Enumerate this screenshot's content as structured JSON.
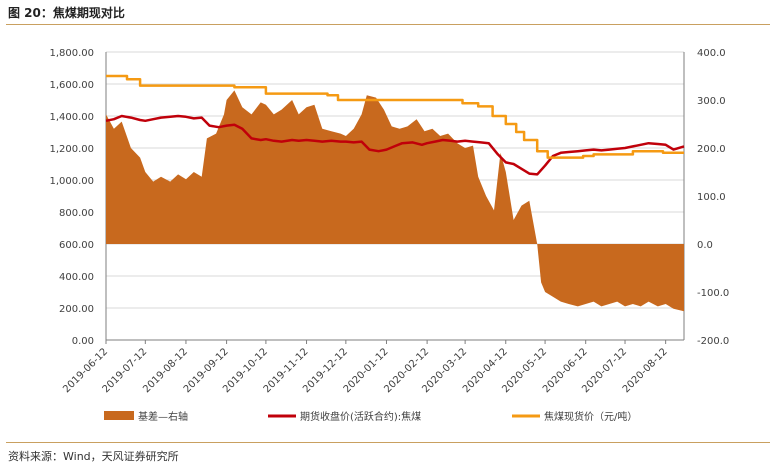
{
  "header": {
    "title": "图 20：焦煤期现对比"
  },
  "footer": {
    "source": "资料来源：Wind，天风证券研究所"
  },
  "colors": {
    "basis": "#c8691e",
    "futures": "#c0000a",
    "spot": "#f59a13",
    "axis": "#7f7f7f",
    "grid": "#d9d9d9"
  },
  "chart_data": {
    "type": "line",
    "x_tick_labels": [
      "2019-06-12",
      "2019-07-12",
      "2019-08-12",
      "2019-09-12",
      "2019-10-12",
      "2019-11-12",
      "2019-12-12",
      "2020-01-12",
      "2020-02-12",
      "2020-03-12",
      "2020-04-12",
      "2020-05-12",
      "2020-06-12",
      "2020-07-12",
      "2020-08-12"
    ],
    "x_range": [
      "2019-06-12",
      "2020-08-26"
    ],
    "left_axis": {
      "range": [
        0,
        1800
      ],
      "ticks": [
        "0.00",
        "200.00",
        "400.00",
        "600.00",
        "800.00",
        "1,000.00",
        "1,200.00",
        "1,400.00",
        "1,600.00",
        "1,800.00"
      ]
    },
    "right_axis": {
      "range": [
        -200,
        400
      ],
      "ticks": [
        "-200.0",
        "-100.0",
        "0.0",
        "100.0",
        "200.0",
        "300.0",
        "400.0"
      ]
    },
    "grid": "horizontal",
    "legend_position": "bottom",
    "series": [
      {
        "name": "基差—右轴",
        "kind": "area",
        "axis": "right",
        "points": [
          [
            "2019-06-12",
            270
          ],
          [
            "2019-06-18",
            240
          ],
          [
            "2019-06-24",
            255
          ],
          [
            "2019-07-01",
            200
          ],
          [
            "2019-07-08",
            180
          ],
          [
            "2019-07-12",
            150
          ],
          [
            "2019-07-18",
            130
          ],
          [
            "2019-07-24",
            140
          ],
          [
            "2019-07-31",
            130
          ],
          [
            "2019-08-06",
            145
          ],
          [
            "2019-08-12",
            135
          ],
          [
            "2019-08-18",
            150
          ],
          [
            "2019-08-24",
            140
          ],
          [
            "2019-08-28",
            220
          ],
          [
            "2019-09-04",
            230
          ],
          [
            "2019-09-10",
            270
          ],
          [
            "2019-09-12",
            300
          ],
          [
            "2019-09-18",
            320
          ],
          [
            "2019-09-24",
            285
          ],
          [
            "2019-10-01",
            270
          ],
          [
            "2019-10-08",
            295
          ],
          [
            "2019-10-12",
            290
          ],
          [
            "2019-10-18",
            270
          ],
          [
            "2019-10-24",
            280
          ],
          [
            "2019-11-01",
            300
          ],
          [
            "2019-11-06",
            270
          ],
          [
            "2019-11-12",
            285
          ],
          [
            "2019-11-18",
            290
          ],
          [
            "2019-11-24",
            240
          ],
          [
            "2019-12-01",
            235
          ],
          [
            "2019-12-08",
            230
          ],
          [
            "2019-12-12",
            225
          ],
          [
            "2019-12-18",
            240
          ],
          [
            "2019-12-24",
            270
          ],
          [
            "2019-12-28",
            310
          ],
          [
            "2020-01-04",
            305
          ],
          [
            "2020-01-10",
            280
          ],
          [
            "2020-01-16",
            245
          ],
          [
            "2020-01-22",
            240
          ],
          [
            "2020-01-28",
            245
          ],
          [
            "2020-02-04",
            260
          ],
          [
            "2020-02-10",
            235
          ],
          [
            "2020-02-16",
            240
          ],
          [
            "2020-02-22",
            225
          ],
          [
            "2020-02-28",
            230
          ],
          [
            "2020-03-06",
            210
          ],
          [
            "2020-03-12",
            200
          ],
          [
            "2020-03-18",
            205
          ],
          [
            "2020-03-22",
            140
          ],
          [
            "2020-03-28",
            100
          ],
          [
            "2020-04-03",
            70
          ],
          [
            "2020-04-08",
            190
          ],
          [
            "2020-04-12",
            150
          ],
          [
            "2020-04-18",
            50
          ],
          [
            "2020-04-24",
            80
          ],
          [
            "2020-04-30",
            90
          ],
          [
            "2020-05-06",
            0
          ],
          [
            "2020-05-09",
            -80
          ],
          [
            "2020-05-12",
            -100
          ],
          [
            "2020-05-18",
            -110
          ],
          [
            "2020-05-24",
            -120
          ],
          [
            "2020-05-30",
            -125
          ],
          [
            "2020-06-06",
            -130
          ],
          [
            "2020-06-12",
            -125
          ],
          [
            "2020-06-18",
            -120
          ],
          [
            "2020-06-24",
            -130
          ],
          [
            "2020-06-30",
            -125
          ],
          [
            "2020-07-06",
            -120
          ],
          [
            "2020-07-12",
            -130
          ],
          [
            "2020-07-18",
            -125
          ],
          [
            "2020-07-24",
            -130
          ],
          [
            "2020-07-30",
            -120
          ],
          [
            "2020-08-06",
            -130
          ],
          [
            "2020-08-12",
            -125
          ],
          [
            "2020-08-18",
            -135
          ],
          [
            "2020-08-26",
            -140
          ]
        ]
      },
      {
        "name": "期货收盘价(活跃合约):焦煤",
        "kind": "line",
        "axis": "left",
        "points": [
          [
            "2019-06-12",
            1370
          ],
          [
            "2019-06-18",
            1380
          ],
          [
            "2019-06-24",
            1400
          ],
          [
            "2019-07-01",
            1390
          ],
          [
            "2019-07-08",
            1375
          ],
          [
            "2019-07-12",
            1370
          ],
          [
            "2019-07-18",
            1380
          ],
          [
            "2019-07-24",
            1390
          ],
          [
            "2019-07-31",
            1395
          ],
          [
            "2019-08-06",
            1400
          ],
          [
            "2019-08-12",
            1395
          ],
          [
            "2019-08-18",
            1385
          ],
          [
            "2019-08-24",
            1390
          ],
          [
            "2019-08-30",
            1340
          ],
          [
            "2019-09-06",
            1330
          ],
          [
            "2019-09-12",
            1340
          ],
          [
            "2019-09-18",
            1345
          ],
          [
            "2019-09-24",
            1320
          ],
          [
            "2019-10-01",
            1260
          ],
          [
            "2019-10-08",
            1250
          ],
          [
            "2019-10-12",
            1255
          ],
          [
            "2019-10-18",
            1245
          ],
          [
            "2019-10-24",
            1240
          ],
          [
            "2019-11-01",
            1250
          ],
          [
            "2019-11-06",
            1245
          ],
          [
            "2019-11-12",
            1250
          ],
          [
            "2019-11-18",
            1245
          ],
          [
            "2019-11-24",
            1240
          ],
          [
            "2019-12-01",
            1245
          ],
          [
            "2019-12-08",
            1240
          ],
          [
            "2019-12-12",
            1240
          ],
          [
            "2019-12-18",
            1235
          ],
          [
            "2019-12-24",
            1240
          ],
          [
            "2019-12-30",
            1190
          ],
          [
            "2020-01-06",
            1180
          ],
          [
            "2020-01-12",
            1190
          ],
          [
            "2020-01-18",
            1210
          ],
          [
            "2020-01-24",
            1230
          ],
          [
            "2020-02-01",
            1235
          ],
          [
            "2020-02-08",
            1220
          ],
          [
            "2020-02-12",
            1230
          ],
          [
            "2020-02-18",
            1240
          ],
          [
            "2020-02-24",
            1250
          ],
          [
            "2020-03-01",
            1245
          ],
          [
            "2020-03-06",
            1240
          ],
          [
            "2020-03-12",
            1245
          ],
          [
            "2020-03-18",
            1240
          ],
          [
            "2020-03-24",
            1235
          ],
          [
            "2020-03-30",
            1230
          ],
          [
            "2020-04-06",
            1160
          ],
          [
            "2020-04-12",
            1110
          ],
          [
            "2020-04-18",
            1100
          ],
          [
            "2020-04-24",
            1070
          ],
          [
            "2020-04-30",
            1040
          ],
          [
            "2020-05-06",
            1035
          ],
          [
            "2020-05-12",
            1090
          ],
          [
            "2020-05-18",
            1150
          ],
          [
            "2020-05-24",
            1170
          ],
          [
            "2020-05-30",
            1175
          ],
          [
            "2020-06-06",
            1180
          ],
          [
            "2020-06-12",
            1185
          ],
          [
            "2020-06-18",
            1190
          ],
          [
            "2020-06-24",
            1185
          ],
          [
            "2020-06-30",
            1190
          ],
          [
            "2020-07-06",
            1195
          ],
          [
            "2020-07-12",
            1200
          ],
          [
            "2020-07-18",
            1210
          ],
          [
            "2020-07-24",
            1220
          ],
          [
            "2020-07-30",
            1230
          ],
          [
            "2020-08-06",
            1225
          ],
          [
            "2020-08-12",
            1220
          ],
          [
            "2020-08-18",
            1190
          ],
          [
            "2020-08-26",
            1210
          ]
        ]
      },
      {
        "name": "焦煤现货价（元/吨）",
        "kind": "step",
        "axis": "left",
        "points": [
          [
            "2019-06-12",
            1650
          ],
          [
            "2019-06-28",
            1650
          ],
          [
            "2019-06-28",
            1630
          ],
          [
            "2019-07-08",
            1630
          ],
          [
            "2019-07-08",
            1590
          ],
          [
            "2019-09-18",
            1590
          ],
          [
            "2019-09-18",
            1580
          ],
          [
            "2019-10-12",
            1580
          ],
          [
            "2019-10-12",
            1540
          ],
          [
            "2019-11-28",
            1540
          ],
          [
            "2019-11-28",
            1530
          ],
          [
            "2019-12-06",
            1530
          ],
          [
            "2019-12-06",
            1500
          ],
          [
            "2020-03-10",
            1500
          ],
          [
            "2020-03-10",
            1480
          ],
          [
            "2020-03-22",
            1480
          ],
          [
            "2020-03-22",
            1460
          ],
          [
            "2020-04-02",
            1460
          ],
          [
            "2020-04-02",
            1400
          ],
          [
            "2020-04-12",
            1400
          ],
          [
            "2020-04-12",
            1350
          ],
          [
            "2020-04-20",
            1350
          ],
          [
            "2020-04-20",
            1300
          ],
          [
            "2020-04-26",
            1300
          ],
          [
            "2020-04-26",
            1250
          ],
          [
            "2020-05-06",
            1250
          ],
          [
            "2020-05-06",
            1180
          ],
          [
            "2020-05-14",
            1180
          ],
          [
            "2020-05-14",
            1140
          ],
          [
            "2020-06-10",
            1140
          ],
          [
            "2020-06-10",
            1150
          ],
          [
            "2020-06-18",
            1150
          ],
          [
            "2020-06-18",
            1160
          ],
          [
            "2020-07-18",
            1160
          ],
          [
            "2020-07-18",
            1180
          ],
          [
            "2020-08-10",
            1180
          ],
          [
            "2020-08-10",
            1170
          ],
          [
            "2020-08-26",
            1170
          ]
        ]
      }
    ]
  }
}
